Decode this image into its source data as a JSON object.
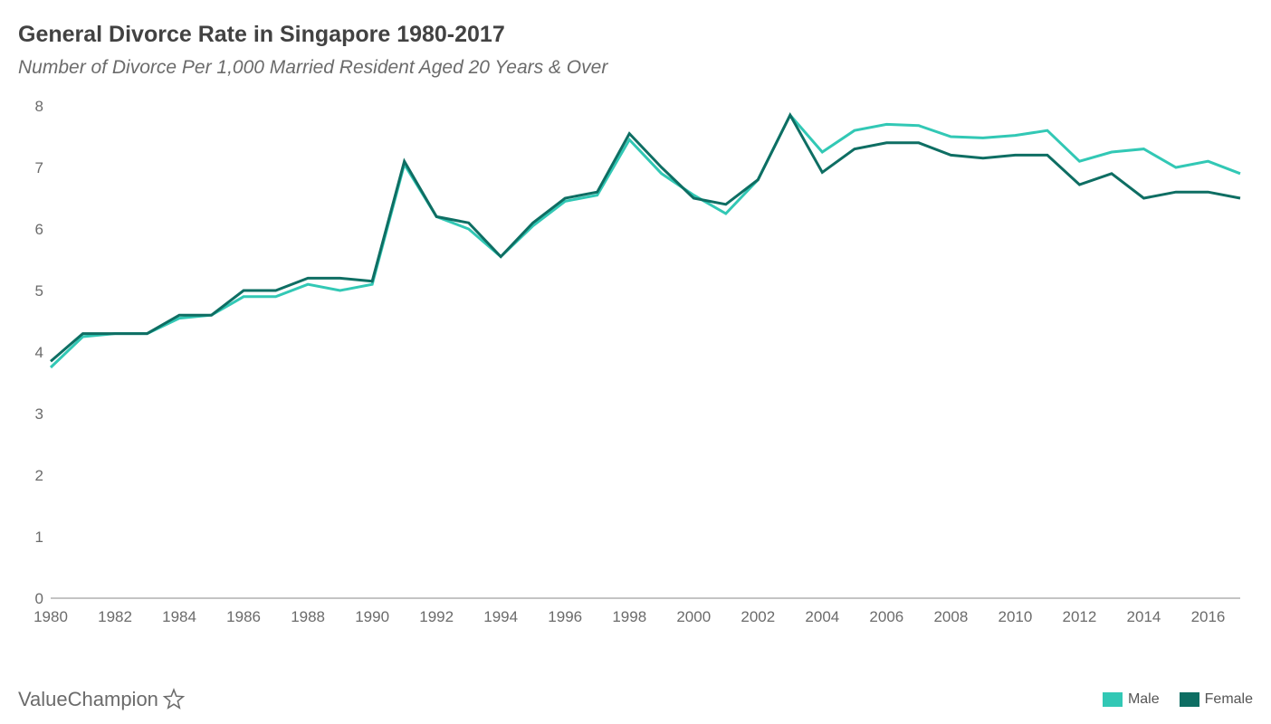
{
  "title": "General Divorce Rate in Singapore 1980-2017",
  "subtitle": "Number of Divorce Per 1,000 Married Resident Aged 20 Years & Over",
  "brand": "ValueChampion",
  "chart": {
    "type": "line",
    "background_color": "#ffffff",
    "axis_color": "#888888",
    "tick_fontsize": 17,
    "tick_color": "#6b6b6b",
    "line_width": 3,
    "xlim": [
      1980,
      2017
    ],
    "ylim": [
      0,
      8
    ],
    "ytick_step": 1,
    "xtick_step": 2,
    "xticks": [
      1980,
      1982,
      1984,
      1986,
      1988,
      1990,
      1992,
      1994,
      1996,
      1998,
      2000,
      2002,
      2004,
      2006,
      2008,
      2010,
      2012,
      2014,
      2016
    ],
    "yticks": [
      0,
      1,
      2,
      3,
      4,
      5,
      6,
      7,
      8
    ],
    "years": [
      1980,
      1981,
      1982,
      1983,
      1984,
      1985,
      1986,
      1987,
      1988,
      1989,
      1990,
      1991,
      1992,
      1993,
      1994,
      1995,
      1996,
      1997,
      1998,
      1999,
      2000,
      2001,
      2002,
      2003,
      2004,
      2005,
      2006,
      2007,
      2008,
      2009,
      2010,
      2011,
      2012,
      2013,
      2014,
      2015,
      2016,
      2017
    ],
    "series": [
      {
        "name": "Male",
        "color": "#32c8b5",
        "values": [
          3.75,
          4.25,
          4.3,
          4.3,
          4.55,
          4.6,
          4.9,
          4.9,
          5.1,
          5.0,
          5.1,
          7.05,
          6.2,
          6.0,
          5.55,
          6.05,
          6.45,
          6.55,
          7.45,
          6.9,
          6.55,
          6.25,
          6.8,
          7.85,
          7.25,
          7.6,
          7.7,
          7.68,
          7.5,
          7.48,
          7.52,
          7.6,
          7.1,
          7.25,
          7.3,
          7.0,
          7.1,
          6.9
        ]
      },
      {
        "name": "Female",
        "color": "#0e6e63",
        "values": [
          3.85,
          4.3,
          4.3,
          4.3,
          4.6,
          4.6,
          5.0,
          5.0,
          5.2,
          5.2,
          5.15,
          7.1,
          6.2,
          6.1,
          5.55,
          6.1,
          6.5,
          6.6,
          7.55,
          7.0,
          6.5,
          6.4,
          6.8,
          7.85,
          6.92,
          7.3,
          7.4,
          7.4,
          7.2,
          7.15,
          7.2,
          7.2,
          6.72,
          6.9,
          6.5,
          6.6,
          6.6,
          6.5
        ]
      }
    ],
    "legend": {
      "items": [
        {
          "label": "Male",
          "color": "#32c8b5"
        },
        {
          "label": "Female",
          "color": "#0e6e63"
        }
      ]
    }
  }
}
